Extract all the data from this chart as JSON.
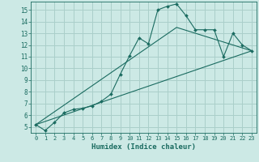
{
  "xlabel": "Humidex (Indice chaleur)",
  "ylabel": "",
  "bg_color": "#cce9e5",
  "grid_color": "#aacfca",
  "line_color": "#1a6b60",
  "xlim": [
    -0.5,
    23.5
  ],
  "ylim": [
    4.5,
    15.7
  ],
  "xticks": [
    0,
    1,
    2,
    3,
    4,
    5,
    6,
    7,
    8,
    9,
    10,
    11,
    12,
    13,
    14,
    15,
    16,
    17,
    18,
    19,
    20,
    21,
    22,
    23
  ],
  "yticks": [
    5,
    6,
    7,
    8,
    9,
    10,
    11,
    12,
    13,
    14,
    15
  ],
  "series1_x": [
    0,
    1,
    2,
    3,
    4,
    5,
    6,
    7,
    8,
    9,
    10,
    11,
    12,
    13,
    14,
    15,
    16,
    17,
    18,
    19,
    20,
    21,
    22,
    23
  ],
  "series1_y": [
    5.2,
    4.7,
    5.4,
    6.2,
    6.5,
    6.6,
    6.8,
    7.2,
    7.8,
    9.5,
    11.1,
    12.6,
    12.1,
    15.0,
    15.3,
    15.5,
    14.5,
    13.3,
    13.3,
    13.3,
    11.0,
    13.0,
    12.0,
    11.5
  ],
  "series2_x": [
    0,
    23
  ],
  "series2_y": [
    5.2,
    11.5
  ],
  "series3_x": [
    0,
    15,
    23
  ],
  "series3_y": [
    5.2,
    13.5,
    11.5
  ],
  "marker_indices": [
    0,
    1,
    2,
    3,
    4,
    5,
    6,
    7,
    8,
    9,
    10,
    11,
    12,
    13,
    14,
    15,
    16,
    17,
    18,
    19,
    20,
    21,
    22,
    23
  ]
}
